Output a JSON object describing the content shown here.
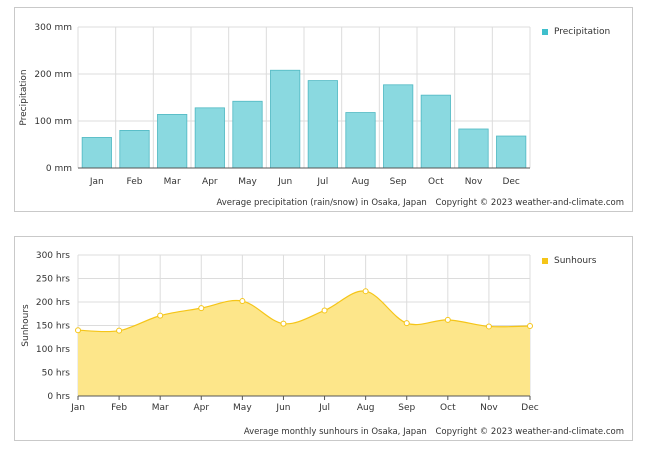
{
  "chart_data": [
    {
      "type": "bar",
      "categories": [
        "Jan",
        "Feb",
        "Mar",
        "Apr",
        "May",
        "Jun",
        "Jul",
        "Aug",
        "Sep",
        "Oct",
        "Nov",
        "Dec"
      ],
      "series": [
        {
          "name": "Precipitation",
          "values": [
            65,
            80,
            114,
            128,
            142,
            208,
            186,
            118,
            177,
            155,
            83,
            68
          ],
          "color": "#8ad9e0"
        }
      ],
      "ylabel": "Precipitation",
      "ylim": [
        0,
        300
      ],
      "yticks": [
        0,
        100,
        200,
        300
      ],
      "ytick_labels": [
        "0 mm",
        "100 mm",
        "200 mm",
        "300 mm"
      ],
      "grid": true,
      "legend": "top-right",
      "caption": "Average precipitation (rain/snow) in Osaka, Japan",
      "copyright": "Copyright © 2023  weather-and-climate.com"
    },
    {
      "type": "area",
      "categories": [
        "Jan",
        "Feb",
        "Mar",
        "Apr",
        "May",
        "Jun",
        "Jul",
        "Aug",
        "Sep",
        "Oct",
        "Nov",
        "Dec"
      ],
      "series": [
        {
          "name": "Sunhours",
          "values": [
            140,
            139,
            171,
            187,
            202,
            154,
            182,
            223,
            155,
            162,
            148,
            149
          ],
          "color": "#f5d042"
        }
      ],
      "ylabel": "Sunhours",
      "ylim": [
        0,
        300
      ],
      "yticks": [
        0,
        50,
        100,
        150,
        200,
        250,
        300
      ],
      "ytick_labels": [
        "0 hrs",
        "50 hrs",
        "100 hrs",
        "150 hrs",
        "200 hrs",
        "250 hrs",
        "300 hrs"
      ],
      "grid": true,
      "legend": "top-right",
      "caption": "Average monthly sunhours in Osaka, Japan",
      "copyright": "Copyright © 2023  weather-and-climate.com"
    }
  ]
}
